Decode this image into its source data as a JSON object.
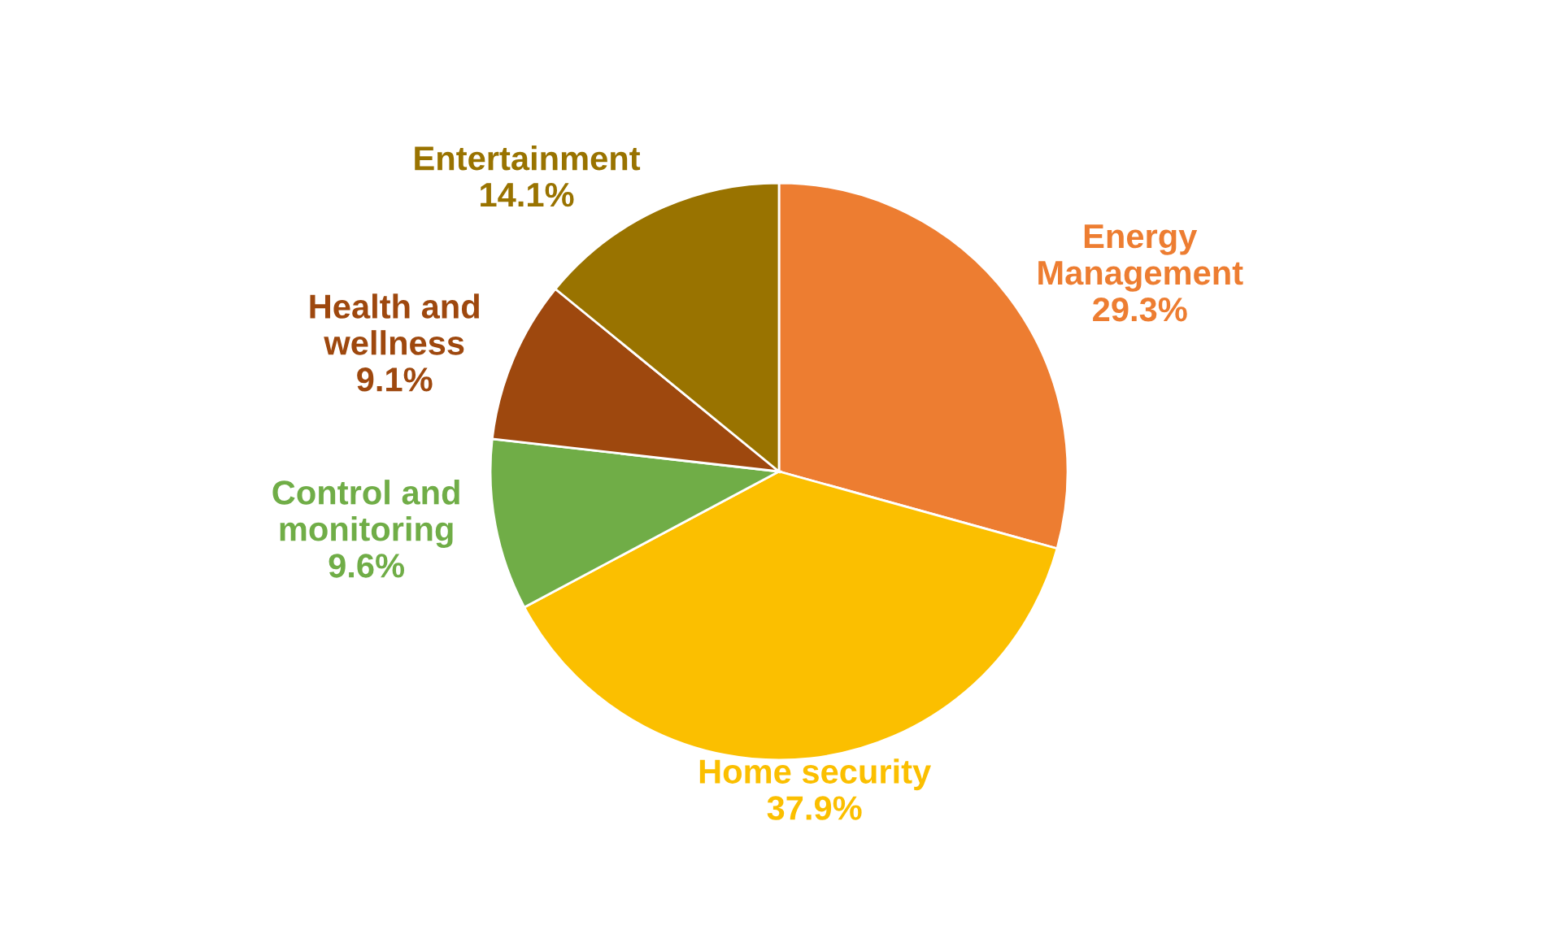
{
  "chart_data": {
    "type": "pie",
    "categories": [
      "Energy Management",
      "Home security",
      "Control and monitoring",
      "Health and wellness",
      "Entertainment"
    ],
    "values": [
      29.3,
      37.9,
      9.6,
      9.1,
      14.1
    ],
    "value_labels": [
      "29.3%",
      "37.9%",
      "9.6%",
      "9.1%",
      "14.1%"
    ],
    "colors": [
      "#ed7d31",
      "#fbbf00",
      "#70ad47",
      "#9e480e",
      "#997300"
    ],
    "legend": false
  }
}
